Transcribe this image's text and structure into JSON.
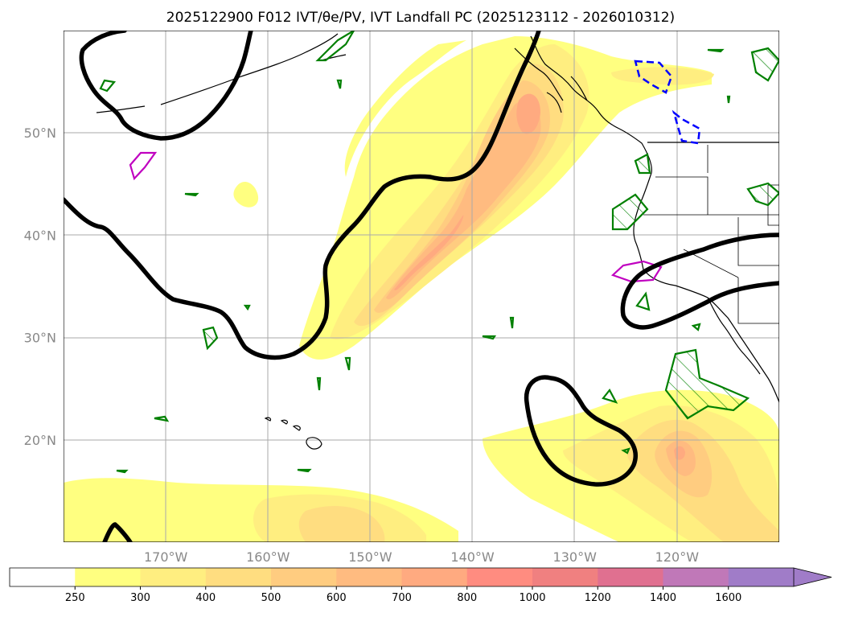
{
  "title": "2025122900 F012 IVT/θe/PV, IVT Landfall PC (2025123112 - 2026010312)",
  "map": {
    "lon_range": [
      -180,
      -110
    ],
    "lat_range": [
      10,
      60
    ],
    "lat_ticks": [
      {
        "value": 20,
        "label": "20°N"
      },
      {
        "value": 30,
        "label": "30°N"
      },
      {
        "value": 40,
        "label": "40°N"
      },
      {
        "value": 50,
        "label": "50°N"
      }
    ],
    "lon_ticks": [
      {
        "value": -170,
        "label": "170°W"
      },
      {
        "value": -160,
        "label": "160°W"
      },
      {
        "value": -150,
        "label": "150°W"
      },
      {
        "value": -140,
        "label": "140°W"
      },
      {
        "value": -130,
        "label": "130°W"
      },
      {
        "value": -120,
        "label": "120°W"
      }
    ],
    "grid": true
  },
  "colorbar": {
    "levels": [
      "250",
      "300",
      "400",
      "500",
      "600",
      "700",
      "800",
      "1000",
      "1200",
      "1400",
      "1600"
    ],
    "colors": [
      "#ffffff",
      "#ffff80",
      "#ffee80",
      "#ffdd80",
      "#ffcc80",
      "#ffbb80",
      "#ffaa80",
      "#ff8c80",
      "#f08080",
      "#e07090",
      "#c078b8",
      "#a07cc8"
    ],
    "extend": "max"
  },
  "contour_colors": {
    "thick_contour": "#000000",
    "pv_green": "#008000",
    "magenta": "#c000c0",
    "blue_dashed": "#0000ff"
  }
}
